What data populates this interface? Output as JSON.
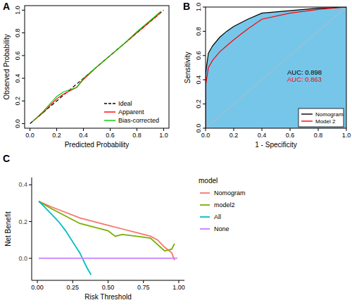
{
  "chart_data": [
    {
      "type": "line",
      "title": "A",
      "x_label": "Predicted Probability",
      "y_label": "Observed Probability",
      "xlim": [
        -0.04,
        1.04
      ],
      "ylim": [
        -0.04,
        1.04
      ],
      "xticks": [
        {
          "value": 0,
          "label": "0.0"
        },
        0.2,
        0.4,
        0.6,
        0.8,
        {
          "value": 1,
          "label": "1.0"
        }
      ],
      "yticks": [
        {
          "value": 0,
          "label": "0.0"
        },
        0.2,
        0.4,
        0.6,
        0.8,
        {
          "value": 1,
          "label": "1.0"
        }
      ],
      "grid": false,
      "legend": "bottom-right",
      "series": [
        {
          "name": "Ideal",
          "color": "#000000",
          "line_style": "dashed",
          "x": [
            0,
            1
          ],
          "values": [
            0,
            1
          ]
        },
        {
          "name": "Apparent",
          "color": "#ff0000",
          "line_style": "solid",
          "x": [
            0.02,
            0.1,
            0.2,
            0.25,
            0.3,
            0.35,
            0.4,
            0.5,
            0.6,
            0.7,
            0.8,
            0.9,
            0.98
          ],
          "values": [
            0.02,
            0.1,
            0.22,
            0.26,
            0.29,
            0.32,
            0.39,
            0.5,
            0.6,
            0.7,
            0.8,
            0.9,
            0.98
          ]
        },
        {
          "name": "Bias-corrected",
          "color": "#00cc00",
          "line_style": "solid",
          "x": [
            0.02,
            0.1,
            0.2,
            0.25,
            0.3,
            0.35,
            0.4,
            0.5,
            0.6,
            0.7,
            0.8,
            0.9,
            0.98
          ],
          "values": [
            0.02,
            0.11,
            0.24,
            0.28,
            0.3,
            0.32,
            0.4,
            0.5,
            0.6,
            0.7,
            0.81,
            0.91,
            0.99
          ]
        }
      ]
    },
    {
      "type": "line",
      "title": "B",
      "x_label": "1 - Specificity",
      "y_label": "Sensitivity",
      "xlim": [
        0,
        1
      ],
      "ylim": [
        0,
        1
      ],
      "xticks": [
        {
          "value": 0,
          "label": "0.0"
        },
        0.2,
        0.4,
        0.6,
        0.8,
        {
          "value": 1,
          "label": "1.0"
        }
      ],
      "yticks": [
        {
          "value": 0,
          "label": "0.0"
        },
        0.2,
        0.4,
        0.6,
        0.8,
        {
          "value": 1,
          "label": "1.0"
        }
      ],
      "grid": false,
      "legend": "bottom-right",
      "annotations": [
        "AUC: 0.898",
        "AUC: 0.863"
      ],
      "series": [
        {
          "name": "Nomogram",
          "type": "area",
          "color": "#000000",
          "line_style": "solid",
          "x": [
            0,
            0,
            0.02,
            0.05,
            0.1,
            0.15,
            0.2,
            0.3,
            0.4,
            0.5,
            0.6,
            0.8,
            1
          ],
          "values": [
            0,
            0.45,
            0.62,
            0.68,
            0.75,
            0.8,
            0.84,
            0.9,
            0.95,
            0.96,
            0.97,
            0.99,
            1
          ]
        },
        {
          "name": "Model 2",
          "type": "line",
          "color": "#ff0000",
          "line_style": "solid",
          "x": [
            0,
            0,
            0.02,
            0.05,
            0.1,
            0.15,
            0.2,
            0.3,
            0.4,
            0.6,
            0.8,
            1
          ],
          "values": [
            0,
            0.35,
            0.5,
            0.56,
            0.63,
            0.68,
            0.73,
            0.82,
            0.9,
            0.95,
            0.98,
            1
          ]
        }
      ]
    },
    {
      "type": "line",
      "title": "C",
      "x_label": "Risk Threshold",
      "y_label": "Net Benefit",
      "xlim": [
        -0.04,
        1.04
      ],
      "ylim": [
        -0.12,
        0.44
      ],
      "xticks": [
        {
          "value": 0,
          "label": "0.00"
        },
        {
          "value": 0.25,
          "label": "0.25"
        },
        {
          "value": 0.5,
          "label": "0.50"
        },
        {
          "value": 0.75,
          "label": "0.75"
        },
        {
          "value": 1,
          "label": "1.00"
        }
      ],
      "yticks": [
        {
          "value": 0,
          "label": "0.0"
        },
        0.2,
        0.4
      ],
      "grid": false,
      "legend": "right",
      "legend_title": "model",
      "series": [
        {
          "name": "Nomogram",
          "color": "#f8766d",
          "line_style": "solid",
          "x": [
            0.01,
            0.1,
            0.2,
            0.3,
            0.4,
            0.5,
            0.6,
            0.7,
            0.8,
            0.85,
            0.9,
            0.95,
            0.97
          ],
          "values": [
            0.31,
            0.28,
            0.25,
            0.22,
            0.2,
            0.18,
            0.16,
            0.14,
            0.12,
            0.1,
            0.06,
            0.03,
            -0.01
          ]
        },
        {
          "name": "model2",
          "color": "#7cae00",
          "line_style": "solid",
          "x": [
            0.01,
            0.1,
            0.2,
            0.3,
            0.4,
            0.5,
            0.55,
            0.6,
            0.7,
            0.8,
            0.9,
            0.95,
            0.97
          ],
          "values": [
            0.31,
            0.27,
            0.23,
            0.19,
            0.17,
            0.15,
            0.12,
            0.13,
            0.12,
            0.11,
            0.04,
            0.05,
            0.08
          ]
        },
        {
          "name": "All",
          "color": "#00bfc4",
          "line_style": "solid",
          "x": [
            0.01,
            0.05,
            0.1,
            0.15,
            0.2,
            0.25,
            0.3,
            0.35,
            0.38
          ],
          "values": [
            0.31,
            0.28,
            0.24,
            0.2,
            0.15,
            0.09,
            0.03,
            -0.05,
            -0.09
          ]
        },
        {
          "name": "None",
          "color": "#c77cff",
          "line_style": "solid",
          "x": [
            0.01,
            0.99
          ],
          "values": [
            0,
            0
          ]
        }
      ]
    }
  ]
}
